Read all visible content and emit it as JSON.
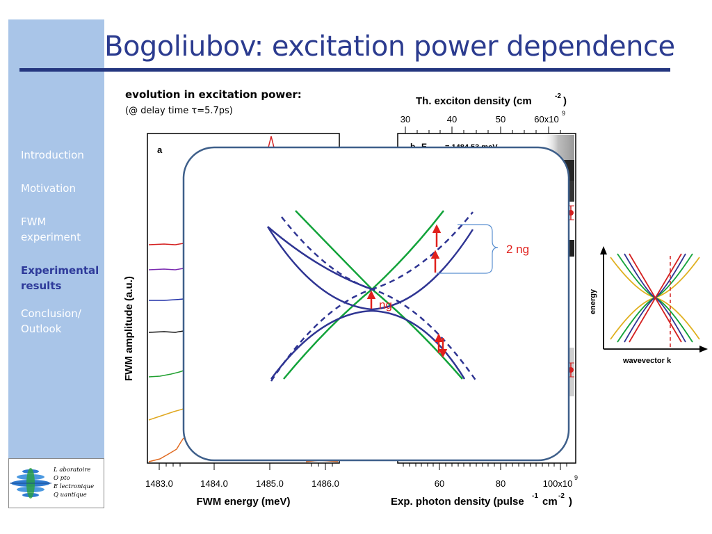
{
  "slide": {
    "title": "Bogoliubov: excitation power dependence",
    "subtitle": "evolution in excitation power:",
    "subnote": "(@ delay time τ=5.7ps)"
  },
  "sidebar": {
    "items": [
      {
        "label": "Introduction",
        "active": false
      },
      {
        "label": "Motivation",
        "active": false
      },
      {
        "label": "FWM\nexperiment",
        "active": false
      },
      {
        "label": "Experimental\nresults",
        "active": true
      },
      {
        "label": "Conclusion/\nOutlook",
        "active": false
      }
    ]
  },
  "logo": {
    "lines": [
      "L aboratoire",
      "O pto",
      "E lectronique",
      "Q uantique"
    ]
  },
  "left_plot": {
    "panel_label": "a",
    "ylabel": "FWM amplitude (a.u.)",
    "xlabel": "FWM energy (meV)",
    "xticks": [
      "1483.0",
      "1484.0",
      "1485.0",
      "1486.0"
    ]
  },
  "right_plot": {
    "panel_label": "b",
    "top_annotation": "E",
    "top_annotation_value": "= 1484.53 meV",
    "top_axis_label": "Th. exciton density (cm",
    "top_axis_sup": "-2",
    "top_axis_label_end": ")",
    "top_ticks": [
      "30",
      "40",
      "50",
      "60x10"
    ],
    "top_ticks_sup": "9",
    "bottom_ticks": [
      "60",
      "80",
      "100x10"
    ],
    "bottom_ticks_sup": "9",
    "bottom_axis_label_a": "Exp. photon density (pulse",
    "bottom_axis_sup_a": "-1",
    "bottom_axis_label_b": "cm",
    "bottom_axis_sup_b": "-2",
    "bottom_axis_label_end": ")"
  },
  "inset": {
    "label_2ng": "2 ng",
    "label_ng": "ng"
  },
  "dispersion_plot": {
    "ylabel": "energy",
    "xlabel": "wavevector k"
  },
  "colors": {
    "title": "#2b3b8f",
    "sidebar": "#a9c5e8",
    "inset_border": "#3e5f8a",
    "bogoliubov": "#2f3593",
    "exciton_line": "#12a33a",
    "arrow": "#e0201c"
  }
}
